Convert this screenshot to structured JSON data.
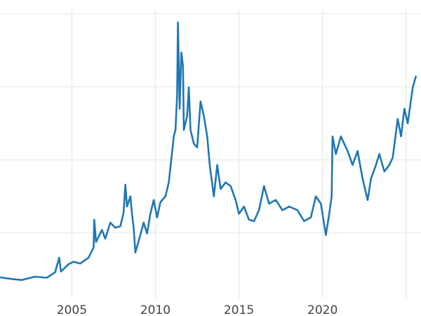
{
  "chart_data": {
    "type": "line",
    "title": "",
    "xlabel": "",
    "ylabel": "",
    "xlim": [
      2000.7,
      2025.6
    ],
    "ylim": [
      1.7,
      41
    ],
    "grid": true,
    "x_ticks": [
      2005,
      2010,
      2015,
      2020,
      2025
    ],
    "x_tick_labels": [
      "2005",
      "2010",
      "2015",
      "2020",
      ""
    ],
    "y_gridlines": [
      10,
      20,
      30,
      40
    ],
    "line_color": "#1f77b4",
    "series": [
      {
        "x": [
          2000.7,
          2001.5,
          2002.0,
          2002.8,
          2003.5,
          2004.0,
          2004.24,
          2004.35,
          2004.8,
          2005.1,
          2005.5,
          2006.0,
          2006.3,
          2006.34,
          2006.45,
          2006.8,
          2007.0,
          2007.3,
          2007.6,
          2007.9,
          2008.1,
          2008.2,
          2008.3,
          2008.5,
          2008.6,
          2008.7,
          2008.8,
          2009.1,
          2009.3,
          2009.5,
          2009.7,
          2009.9,
          2010.1,
          2010.3,
          2010.6,
          2010.8,
          2010.95,
          2011.1,
          2011.2,
          2011.3,
          2011.35,
          2011.45,
          2011.55,
          2011.65,
          2011.7,
          2011.9,
          2012.0,
          2012.1,
          2012.3,
          2012.5,
          2012.7,
          2012.8,
          2012.9,
          2013.1,
          2013.25,
          2013.5,
          2013.7,
          2013.9,
          2014.2,
          2014.5,
          2014.8,
          2015.0,
          2015.3,
          2015.6,
          2015.9,
          2016.2,
          2016.5,
          2016.8,
          2017.2,
          2017.6,
          2018.0,
          2018.5,
          2018.9,
          2019.3,
          2019.6,
          2019.9,
          2020.2,
          2020.4,
          2020.55,
          2020.6,
          2020.8,
          2021.1,
          2021.5,
          2021.8,
          2022.1,
          2022.4,
          2022.7,
          2022.9,
          2023.2,
          2023.4,
          2023.7,
          2024.0,
          2024.2,
          2024.5,
          2024.7,
          2024.9,
          2025.1,
          2025.4,
          2025.6
        ],
        "values": [
          3.9,
          3.65,
          3.55,
          4.0,
          3.85,
          4.6,
          6.6,
          4.7,
          5.7,
          6.05,
          5.8,
          6.6,
          8.0,
          11.8,
          8.75,
          10.4,
          9.2,
          11.4,
          10.7,
          10.9,
          12.8,
          16.6,
          13.6,
          15.0,
          12.6,
          10.7,
          7.3,
          9.7,
          11.4,
          9.9,
          12.6,
          14.5,
          12.1,
          14.2,
          15.0,
          16.9,
          20.0,
          23.2,
          24.1,
          28.9,
          38.8,
          27.0,
          34.7,
          32.8,
          24.1,
          26.0,
          29.9,
          24.1,
          22.2,
          21.7,
          28.0,
          27.0,
          26.0,
          23.2,
          19.3,
          15.0,
          19.3,
          16.0,
          16.9,
          16.4,
          14.5,
          12.6,
          13.6,
          11.8,
          11.6,
          13.1,
          16.4,
          14.0,
          14.5,
          13.1,
          13.6,
          13.1,
          11.6,
          12.1,
          15.0,
          14.0,
          9.7,
          12.6,
          15.0,
          23.2,
          20.8,
          23.2,
          21.2,
          19.3,
          21.2,
          17.4,
          14.5,
          17.4,
          19.3,
          20.8,
          18.4,
          19.3,
          20.3,
          25.6,
          23.2,
          27.0,
          25.0,
          29.9,
          31.5
        ]
      }
    ]
  }
}
